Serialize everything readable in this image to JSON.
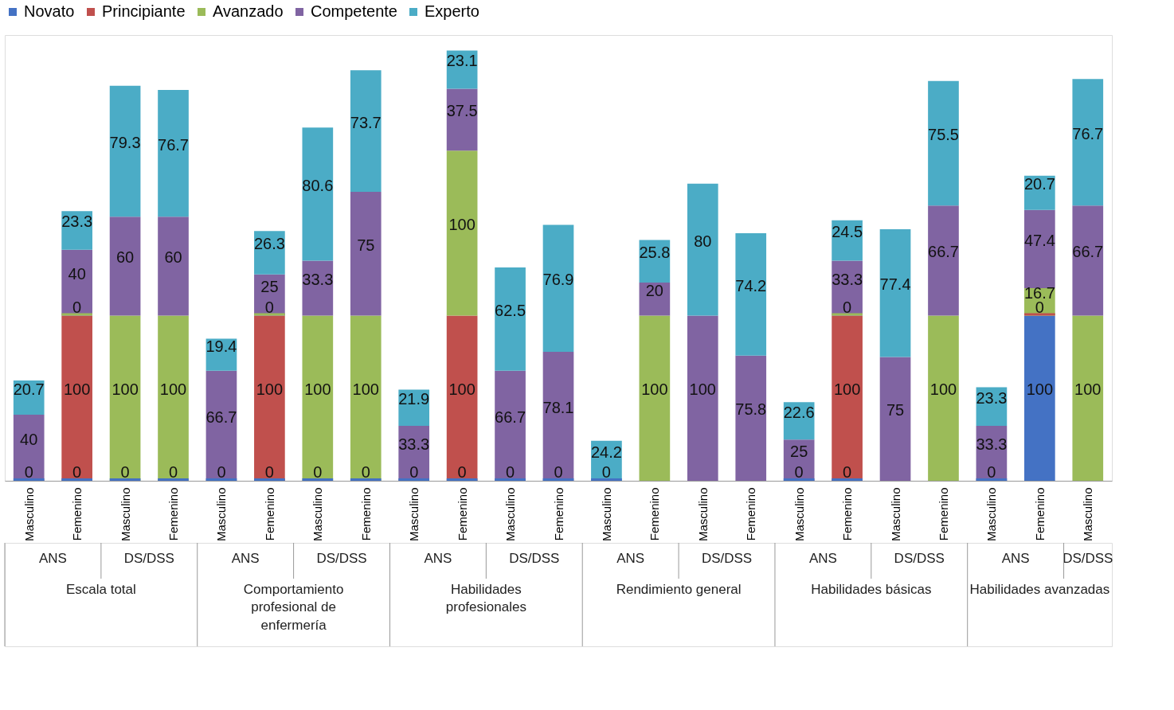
{
  "chart_data": {
    "type": "bar",
    "stacked": true,
    "data_labels": true,
    "legend": "top",
    "tick_labels": "x",
    "ylim": [
      0,
      270
    ],
    "categories": [
      "Masculino",
      "Femenino",
      "Masculino",
      "Femenino",
      "Masculino",
      "Femenino",
      "Masculino",
      "Femenino",
      "Masculino",
      "Femenino",
      "Masculino",
      "Femenino",
      "Masculino",
      "Femenino",
      "Masculino",
      "Femenino",
      "Masculino",
      "Femenino",
      "Masculino",
      "Femenino",
      "Masculino",
      "Femenino",
      "Masculino"
    ],
    "series": [
      {
        "name": "Novato",
        "color": "#4472c4",
        "values": [
          0,
          0,
          0,
          0,
          0,
          0,
          0,
          0,
          0,
          0,
          0,
          0,
          0,
          null,
          null,
          null,
          0,
          0,
          null,
          null,
          0,
          100,
          null
        ]
      },
      {
        "name": "Principiante",
        "color": "#c0504d",
        "values": [
          null,
          100,
          null,
          null,
          null,
          100,
          null,
          null,
          null,
          100,
          null,
          null,
          null,
          null,
          null,
          null,
          null,
          100,
          null,
          null,
          null,
          0,
          null
        ]
      },
      {
        "name": "Avanzado",
        "color": "#9bbb59",
        "values": [
          null,
          0,
          100,
          100,
          null,
          0,
          100,
          100,
          null,
          100,
          null,
          null,
          null,
          100,
          null,
          null,
          null,
          0,
          null,
          100,
          null,
          16.7,
          100
        ]
      },
      {
        "name": "Competente",
        "color": "#8064a2",
        "values": [
          40,
          40,
          60,
          60,
          66.7,
          25,
          33.3,
          75,
          33.3,
          37.5,
          66.7,
          78.1,
          null,
          20,
          100,
          75.8,
          25,
          33.3,
          75,
          66.7,
          33.3,
          47.4,
          66.7
        ]
      },
      {
        "name": "Experto",
        "color": "#4bacc6",
        "values": [
          20.7,
          23.3,
          79.3,
          76.7,
          19.4,
          26.3,
          80.6,
          73.7,
          21.9,
          23.1,
          62.5,
          76.9,
          24.2,
          25.8,
          80,
          74.2,
          22.6,
          24.5,
          77.4,
          75.5,
          23.3,
          20.7,
          76.7
        ]
      }
    ],
    "annotations": [
      "ANS",
      "DS/DSS",
      "ANS",
      "DS/DSS",
      "ANS",
      "DS/DSS",
      "ANS",
      "DS/DSS",
      "ANS",
      "DS/DSS",
      "ANS",
      "DS/DSS",
      "Escala total",
      "Comportamiento profesional de enfermería",
      "Habilidades profesionales",
      "Rendimiento general",
      "Habilidades básicas",
      "Habilidades avanzadas"
    ]
  }
}
